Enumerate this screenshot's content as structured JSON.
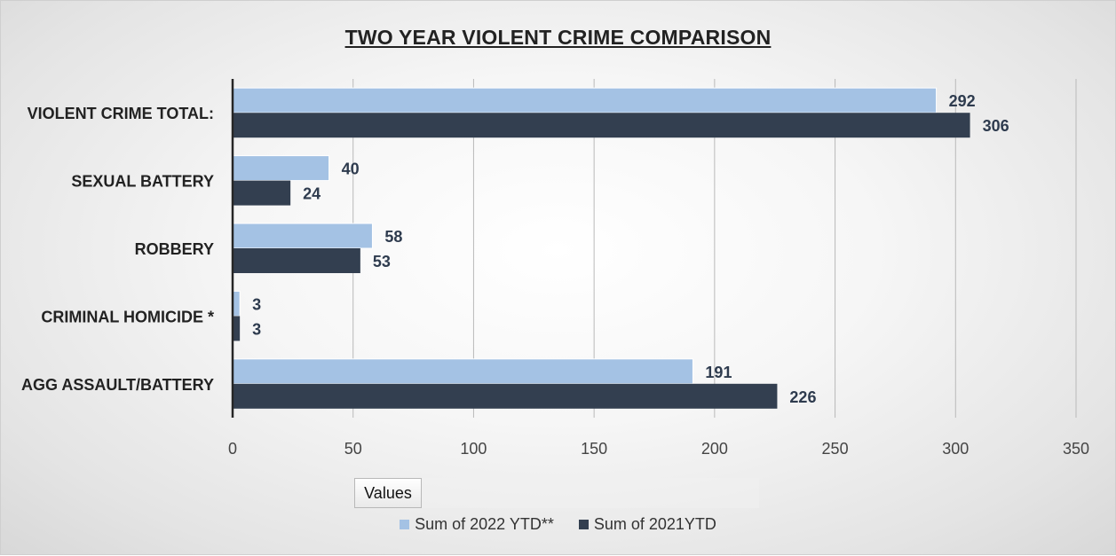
{
  "chart_data": {
    "type": "bar",
    "orientation": "horizontal",
    "title": "TWO YEAR VIOLENT CRIME COMPARISON",
    "categories": [
      "VIOLENT CRIME TOTAL:",
      "SEXUAL BATTERY",
      "ROBBERY",
      "CRIMINAL HOMICIDE *",
      "AGG ASSAULT/BATTERY"
    ],
    "series": [
      {
        "name": "Sum of 2022 YTD**",
        "values": [
          292,
          40,
          58,
          3,
          191
        ],
        "color": "#a4c2e4"
      },
      {
        "name": "Sum of 2021YTD",
        "values": [
          306,
          24,
          53,
          3,
          226
        ],
        "color": "#333f50"
      }
    ],
    "x_ticks": [
      0,
      50,
      100,
      150,
      200,
      250,
      300,
      350
    ],
    "xlim": [
      0,
      350
    ],
    "grid": "vertical",
    "data_labels": true,
    "legend_position": "bottom"
  },
  "field_button": {
    "label": "Values"
  }
}
